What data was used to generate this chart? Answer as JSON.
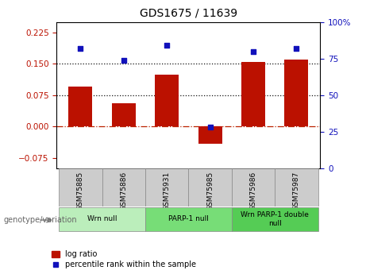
{
  "title": "GDS1675 / 11639",
  "samples": [
    "GSM75885",
    "GSM75886",
    "GSM75931",
    "GSM75985",
    "GSM75986",
    "GSM75987"
  ],
  "log_ratios": [
    0.095,
    0.055,
    0.125,
    -0.04,
    0.155,
    0.16
  ],
  "percentile_ranks": [
    82,
    74,
    84,
    28,
    80,
    82
  ],
  "ylim_left": [
    -0.1,
    0.25
  ],
  "ylim_right": [
    0,
    100
  ],
  "yticks_left": [
    -0.075,
    0,
    0.075,
    0.15,
    0.225
  ],
  "yticks_right": [
    0,
    25,
    50,
    75,
    100
  ],
  "hlines": [
    0.075,
    0.15
  ],
  "bar_color": "#bb1100",
  "dot_color": "#1111bb",
  "zero_line_color": "#bb2200",
  "hline_color": "#111111",
  "groups": [
    {
      "label": "Wrn null",
      "samples": [
        "GSM75885",
        "GSM75886"
      ],
      "color": "#bbeebb"
    },
    {
      "label": "PARP-1 null",
      "samples": [
        "GSM75931",
        "GSM75985"
      ],
      "color": "#77dd77"
    },
    {
      "label": "Wrn PARP-1 double\nnull",
      "samples": [
        "GSM75986",
        "GSM75987"
      ],
      "color": "#55cc55"
    }
  ],
  "genotype_label": "genotype/variation",
  "legend_log_ratio": "log ratio",
  "legend_percentile": "percentile rank within the sample",
  "tick_color_left": "#bb1100",
  "tick_color_right": "#1111bb",
  "bar_width": 0.55,
  "sample_box_color": "#cccccc"
}
